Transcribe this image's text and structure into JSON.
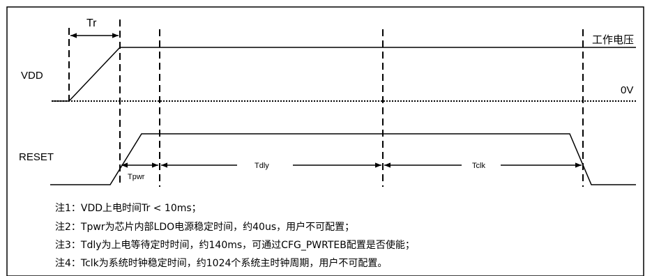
{
  "signals": {
    "vdd": "VDD",
    "reset": "RESET",
    "working_voltage": "工作电压",
    "zero_volt": "0V"
  },
  "intervals": {
    "tr": "Tr",
    "tpwr": "Tpwr",
    "tdly": "Tdly",
    "tclk": "Tclk"
  },
  "notes": [
    "注1：VDD上电时间Tr < 10ms；",
    "注2：Tpwr为芯片内部LDO电源稳定时间，约40us，用户不可配置；",
    "注3：Tdly为上电等待定时时间，约140ms，可通过CFG_PWRTEB配置是否使能；",
    "注4：Tclk为系统时钟稳定时间，约1024个系统主时钟周期，用户不可配置。"
  ]
}
